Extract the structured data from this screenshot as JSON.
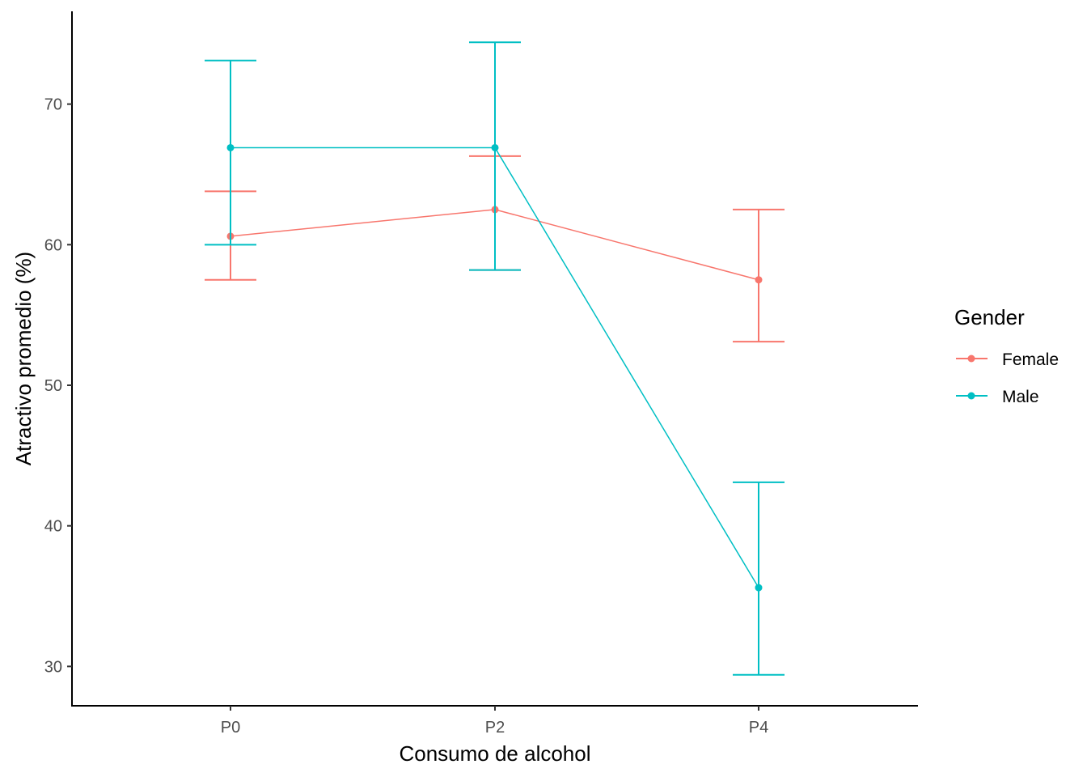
{
  "chart_data": {
    "type": "line",
    "xlabel": "Consumo de alcohol",
    "ylabel": "Atractivo promedio (%)",
    "categories": [
      "P0",
      "P2",
      "P4"
    ],
    "yticks": [
      30,
      40,
      50,
      60,
      70
    ],
    "ylim": [
      27.2,
      76.6
    ],
    "grid": false,
    "legend": {
      "title": "Gender",
      "position": "right"
    },
    "series": [
      {
        "name": "Female",
        "color": "#F8766D",
        "values": [
          60.6,
          62.5,
          57.5
        ],
        "lower": [
          57.5,
          58.2,
          53.1
        ],
        "upper": [
          63.8,
          66.3,
          62.5
        ]
      },
      {
        "name": "Male",
        "color": "#00BFC4",
        "values": [
          66.9,
          66.9,
          35.6
        ],
        "lower": [
          60.0,
          58.2,
          29.4
        ],
        "upper": [
          73.1,
          74.4,
          43.1
        ]
      }
    ]
  }
}
